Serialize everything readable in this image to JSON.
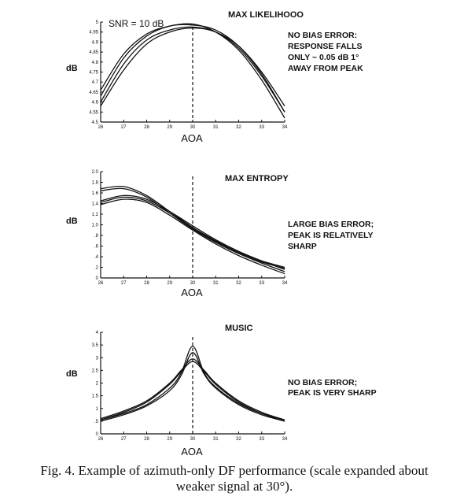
{
  "chart_data": [
    {
      "type": "line",
      "title": "MAX LIKELIHOOO",
      "snr_label": "SNR = 10 dB",
      "xlabel": "AOA",
      "ylabel": "dB",
      "xlim": [
        26,
        34
      ],
      "ylim": [
        4.5,
        5.0
      ],
      "x_ticks": [
        "26",
        "27",
        "28",
        "29",
        "30",
        "31",
        "32",
        "33",
        "34"
      ],
      "y_ticks": [
        "4.5",
        "4.55",
        "4.6",
        "4.65",
        "4.7",
        "4.75",
        "4.8",
        "4.85",
        "4.9",
        "4.95",
        "5"
      ],
      "marker_x": 30,
      "annotation": [
        "NO BIAS ERROR:",
        "RESPONSE FALLS",
        "ONLY ~ 0.05 dB  1°",
        "AWAY FROM PEAK"
      ],
      "series": [
        {
          "x": [
            26,
            27,
            28,
            29,
            30,
            31,
            32,
            33,
            34
          ],
          "values": [
            4.66,
            4.84,
            4.94,
            4.98,
            4.99,
            4.95,
            4.86,
            4.71,
            4.52
          ]
        },
        {
          "x": [
            26,
            27,
            28,
            29,
            30,
            31,
            32,
            33,
            34
          ],
          "values": [
            4.63,
            4.82,
            4.93,
            4.98,
            4.985,
            4.96,
            4.88,
            4.74,
            4.55
          ]
        },
        {
          "x": [
            26,
            27,
            28,
            29,
            30,
            31,
            32,
            33,
            34
          ],
          "values": [
            4.6,
            4.79,
            4.91,
            4.96,
            4.975,
            4.95,
            4.87,
            4.73,
            4.55
          ]
        },
        {
          "x": [
            26,
            27,
            28,
            29,
            30,
            31,
            32,
            33,
            34
          ],
          "values": [
            4.58,
            4.76,
            4.89,
            4.95,
            4.97,
            4.95,
            4.88,
            4.75,
            4.58
          ]
        }
      ]
    },
    {
      "type": "line",
      "title": "MAX ENTROPY",
      "xlabel": "AOA",
      "ylabel": "dB",
      "xlim": [
        26,
        34
      ],
      "ylim": [
        0,
        2.0
      ],
      "x_ticks": [
        "26",
        "27",
        "28",
        "29",
        "30",
        "31",
        "32",
        "33",
        "34"
      ],
      "y_ticks": [
        "0",
        ".2",
        ".4",
        ".6",
        ".8",
        "1.0",
        "1.2",
        "1.4",
        "1.6",
        "1.8",
        "2.0"
      ],
      "marker_x": 30,
      "annotation": [
        "LARGE BIAS ERROR;",
        "PEAK IS RELATIVELY",
        "SHARP"
      ],
      "series": [
        {
          "x": [
            26,
            27,
            28,
            29,
            30,
            31,
            32,
            33,
            34
          ],
          "values": [
            1.68,
            1.72,
            1.55,
            1.25,
            0.95,
            0.7,
            0.48,
            0.32,
            0.2
          ]
        },
        {
          "x": [
            26,
            27,
            28,
            29,
            30,
            31,
            32,
            33,
            34
          ],
          "values": [
            1.64,
            1.68,
            1.52,
            1.22,
            0.92,
            0.67,
            0.46,
            0.3,
            0.18
          ]
        },
        {
          "x": [
            26,
            27,
            28,
            29,
            30,
            31,
            32,
            33,
            34
          ],
          "values": [
            1.45,
            1.55,
            1.48,
            1.25,
            0.98,
            0.72,
            0.5,
            0.32,
            0.16
          ]
        },
        {
          "x": [
            26,
            27,
            28,
            29,
            30,
            31,
            32,
            33,
            34
          ],
          "values": [
            1.42,
            1.52,
            1.45,
            1.22,
            0.94,
            0.68,
            0.46,
            0.28,
            0.12
          ]
        },
        {
          "x": [
            26,
            27,
            28,
            29,
            30,
            31,
            32,
            33,
            34
          ],
          "values": [
            1.38,
            1.48,
            1.42,
            1.18,
            0.9,
            0.64,
            0.42,
            0.24,
            0.08
          ]
        }
      ]
    },
    {
      "type": "line",
      "title": "MUSIC",
      "xlabel": "AOA",
      "ylabel": "dB",
      "xlim": [
        26,
        34
      ],
      "ylim": [
        0,
        4.0
      ],
      "x_ticks": [
        "26",
        "27",
        "28",
        "29",
        "30",
        "31",
        "32",
        "33",
        "34"
      ],
      "y_ticks": [
        "0",
        ".5",
        "1",
        "1.5",
        "2",
        "2.5",
        "3",
        "3.5",
        "4"
      ],
      "marker_x": 30,
      "annotation": [
        "NO BIAS ERROR;",
        "PEAK IS VERY SHARP"
      ],
      "series": [
        {
          "x": [
            26,
            27,
            28,
            29,
            29.5,
            30,
            30.5,
            31,
            32,
            33,
            34
          ],
          "values": [
            0.55,
            0.8,
            1.15,
            1.8,
            2.4,
            3.45,
            2.4,
            1.85,
            1.2,
            0.8,
            0.55
          ]
        },
        {
          "x": [
            26,
            27,
            28,
            29,
            29.5,
            30,
            30.5,
            31,
            32,
            33,
            34
          ],
          "values": [
            0.5,
            0.75,
            1.1,
            1.7,
            2.3,
            3.2,
            2.35,
            1.8,
            1.15,
            0.75,
            0.5
          ]
        },
        {
          "x": [
            26,
            27,
            28,
            29,
            29.5,
            30,
            30.5,
            31,
            32,
            33,
            34
          ],
          "values": [
            0.6,
            0.9,
            1.3,
            2.0,
            2.5,
            2.95,
            2.5,
            2.0,
            1.3,
            0.85,
            0.55
          ]
        },
        {
          "x": [
            26,
            27,
            28,
            29,
            29.5,
            30,
            30.5,
            31,
            32,
            33,
            34
          ],
          "values": [
            0.55,
            0.85,
            1.25,
            1.95,
            2.45,
            2.85,
            2.45,
            1.95,
            1.25,
            0.8,
            0.5
          ]
        }
      ]
    }
  ],
  "caption": {
    "line1": "Fig. 4.   Example of azimuth-only DF performance (scale expanded about",
    "line2": "weaker signal at 30°)."
  }
}
